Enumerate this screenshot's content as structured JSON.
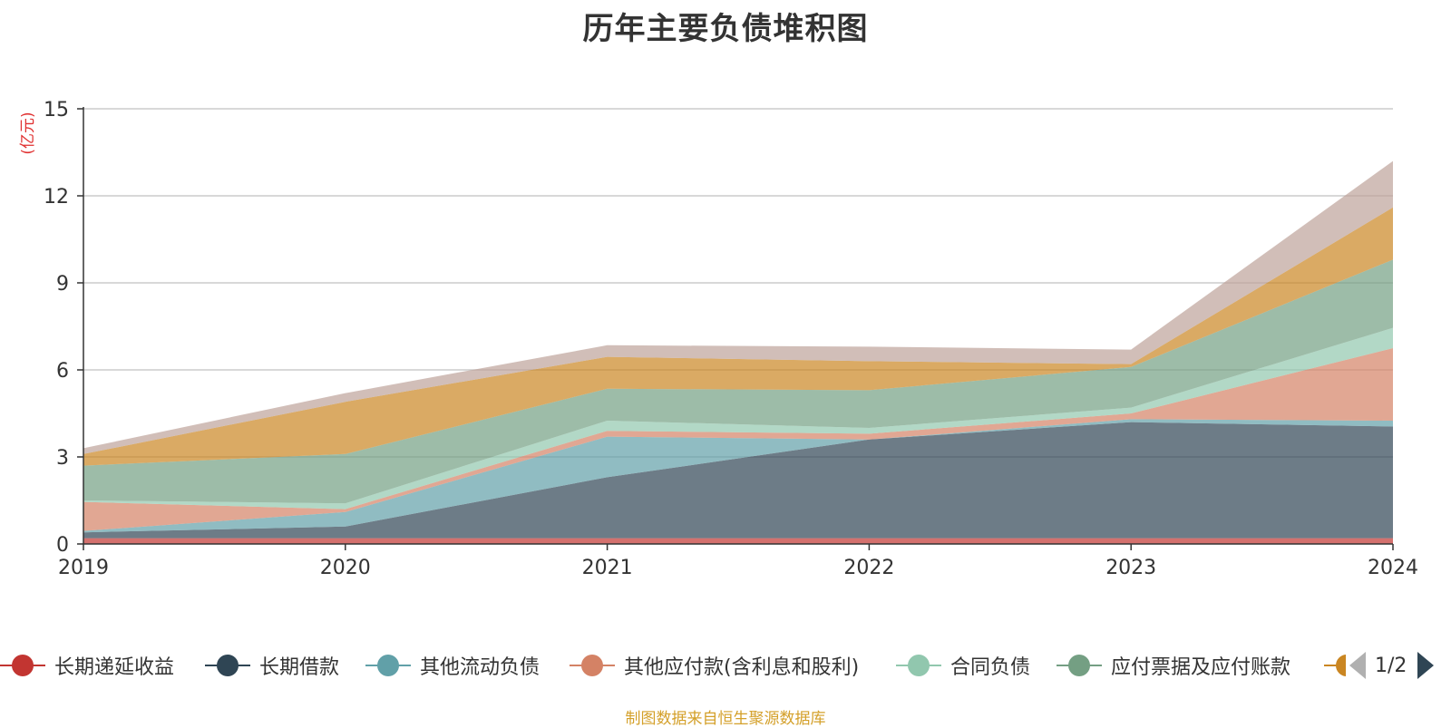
{
  "title": "历年主要负债堆积图",
  "source_note": "制图数据来自恒生聚源数据库",
  "pager": {
    "text": "1/2"
  },
  "chart_data": {
    "type": "area",
    "stacked": true,
    "title": "历年主要负债堆积图",
    "unit_label": "(亿元)",
    "x": [
      "2019",
      "2020",
      "2021",
      "2022",
      "2023",
      "2024"
    ],
    "ylim": [
      0,
      15
    ],
    "yticks": [
      "0",
      "3",
      "6",
      "9",
      "12",
      "15"
    ],
    "grid": true,
    "legend_position": "bottom",
    "series": [
      {
        "name": "长期递延收益",
        "color": "#c23531",
        "values": [
          0.2,
          0.2,
          0.2,
          0.2,
          0.2,
          0.2
        ]
      },
      {
        "name": "长期借款",
        "color": "#2f4554",
        "values": [
          0.2,
          0.4,
          2.1,
          3.4,
          4.0,
          3.85
        ]
      },
      {
        "name": "其他流动负债",
        "color": "#61a0a8",
        "values": [
          0.05,
          0.5,
          1.4,
          0.0,
          0.1,
          0.2
        ]
      },
      {
        "name": "其他应付款(含利息和股利)",
        "color": "#d48265",
        "values": [
          1.0,
          0.1,
          0.2,
          0.2,
          0.2,
          2.5
        ]
      },
      {
        "name": "合同负债",
        "color": "#91c7ae",
        "values": [
          0.05,
          0.2,
          0.35,
          0.2,
          0.2,
          0.7
        ]
      },
      {
        "name": "应付票据及应付账款",
        "color": "#749f83",
        "values": [
          1.2,
          1.7,
          1.1,
          1.3,
          1.4,
          2.35
        ]
      },
      {
        "name": "",
        "color": "#ca8622",
        "values": [
          0.4,
          1.8,
          1.1,
          1.0,
          0.1,
          1.8
        ]
      },
      {
        "name": "",
        "color": "#bda29a",
        "values": [
          0.2,
          0.3,
          0.4,
          0.5,
          0.5,
          1.6
        ]
      }
    ]
  }
}
